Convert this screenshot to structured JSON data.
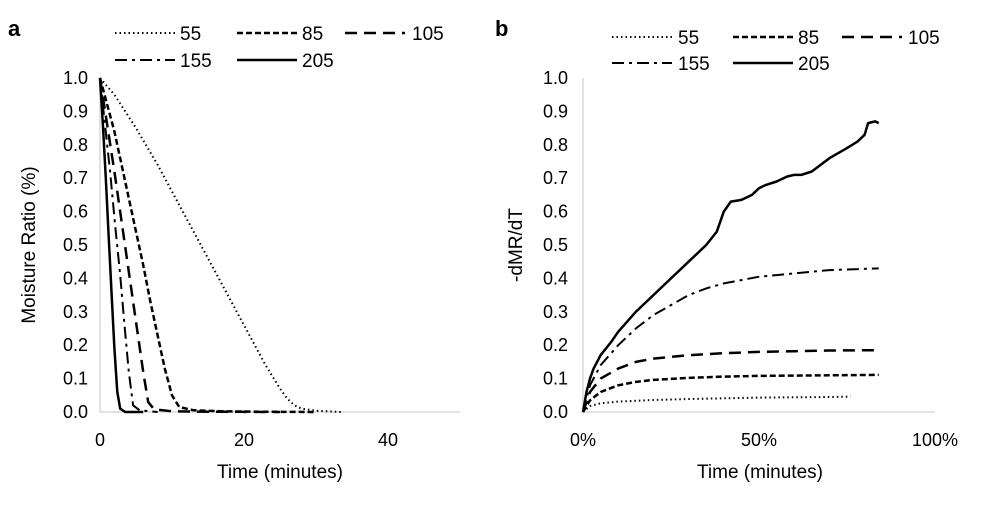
{
  "chart_data": [
    {
      "panel": "a",
      "type": "line",
      "title": "",
      "xlabel": "Time (minutes)",
      "ylabel": "Moisture Ratio (%)",
      "xlim": [
        0,
        50
      ],
      "ylim": [
        0,
        1
      ],
      "xticks": [
        "0",
        "20",
        "40"
      ],
      "xtick_values": [
        0,
        20,
        40
      ],
      "yticks": [
        "0.0",
        "0.1",
        "0.2",
        "0.3",
        "0.4",
        "0.5",
        "0.6",
        "0.7",
        "0.8",
        "0.9",
        "1.0"
      ],
      "grid": false,
      "legend_position": "top",
      "series": [
        {
          "name": "55",
          "style": "dotted",
          "x": [
            0,
            2,
            5,
            8,
            12,
            16,
            20,
            23,
            25,
            26,
            27,
            28,
            30,
            33.5
          ],
          "y": [
            1.0,
            0.95,
            0.85,
            0.74,
            0.58,
            0.42,
            0.26,
            0.14,
            0.07,
            0.04,
            0.02,
            0.01,
            0.004,
            0.0
          ]
        },
        {
          "name": "85",
          "style": "dashed",
          "x": [
            0,
            1,
            2,
            3,
            4,
            5,
            6,
            7,
            8,
            9,
            10,
            11,
            13,
            17,
            22,
            30
          ],
          "y": [
            1.0,
            0.92,
            0.84,
            0.74,
            0.64,
            0.54,
            0.44,
            0.33,
            0.23,
            0.13,
            0.05,
            0.015,
            0.005,
            0.002,
            0.001,
            0.0
          ]
        },
        {
          "name": "105",
          "style": "long-dashed",
          "x": [
            0,
            1,
            2,
            3,
            4,
            5,
            6,
            6.7,
            7.5,
            10,
            15,
            25
          ],
          "y": [
            1.0,
            0.86,
            0.72,
            0.57,
            0.42,
            0.27,
            0.12,
            0.03,
            0.008,
            0.002,
            0.001,
            0.0
          ]
        },
        {
          "name": "155",
          "style": "dash-dot",
          "x": [
            0,
            0.7,
            1.4,
            2.1,
            2.8,
            3.4,
            4,
            4.6,
            5.5,
            8
          ],
          "y": [
            1.0,
            0.86,
            0.72,
            0.56,
            0.41,
            0.26,
            0.12,
            0.02,
            0.005,
            0.0
          ]
        },
        {
          "name": "205",
          "style": "solid",
          "x": [
            0,
            0.4,
            0.8,
            1.2,
            1.6,
            2.0,
            2.4,
            2.8,
            3.5,
            6
          ],
          "y": [
            1.0,
            0.86,
            0.7,
            0.53,
            0.36,
            0.19,
            0.06,
            0.01,
            0.0,
            0.0
          ]
        }
      ]
    },
    {
      "panel": "b",
      "type": "line",
      "title": "",
      "xlabel": "Time (minutes)",
      "ylabel": "-dMR/dT",
      "xlim": [
        0,
        1
      ],
      "ylim": [
        0,
        1
      ],
      "xticks": [
        "0%",
        "50%",
        "100%"
      ],
      "xtick_values": [
        0,
        0.5,
        1
      ],
      "yticks": [
        "0.0",
        "0.1",
        "0.2",
        "0.3",
        "0.4",
        "0.5",
        "0.6",
        "0.7",
        "0.8",
        "0.9",
        "1.0"
      ],
      "grid": false,
      "legend_position": "top",
      "series": [
        {
          "name": "55",
          "style": "dotted",
          "x": [
            0,
            0.02,
            0.05,
            0.1,
            0.2,
            0.3,
            0.4,
            0.5,
            0.6,
            0.7,
            0.76
          ],
          "y": [
            0.0,
            0.018,
            0.026,
            0.031,
            0.036,
            0.039,
            0.041,
            0.043,
            0.044,
            0.045,
            0.046
          ]
        },
        {
          "name": "85",
          "style": "dashed",
          "x": [
            0,
            0.02,
            0.05,
            0.1,
            0.15,
            0.2,
            0.3,
            0.4,
            0.5,
            0.6,
            0.7,
            0.84
          ],
          "y": [
            0.0,
            0.035,
            0.06,
            0.08,
            0.09,
            0.096,
            0.102,
            0.106,
            0.108,
            0.109,
            0.11,
            0.111
          ]
        },
        {
          "name": "105",
          "style": "long-dashed",
          "x": [
            0,
            0.02,
            0.05,
            0.1,
            0.15,
            0.2,
            0.3,
            0.4,
            0.5,
            0.6,
            0.7,
            0.84
          ],
          "y": [
            0.0,
            0.06,
            0.1,
            0.13,
            0.15,
            0.16,
            0.17,
            0.176,
            0.18,
            0.182,
            0.184,
            0.185
          ]
        },
        {
          "name": "155",
          "style": "dash-dot",
          "x": [
            0,
            0.02,
            0.05,
            0.1,
            0.15,
            0.2,
            0.25,
            0.3,
            0.35,
            0.4,
            0.45,
            0.5,
            0.55,
            0.6,
            0.7,
            0.84
          ],
          "y": [
            0.0,
            0.08,
            0.14,
            0.2,
            0.25,
            0.29,
            0.32,
            0.35,
            0.37,
            0.385,
            0.395,
            0.405,
            0.41,
            0.415,
            0.425,
            0.43
          ]
        },
        {
          "name": "205",
          "style": "solid",
          "x": [
            0,
            0.01,
            0.02,
            0.03,
            0.05,
            0.08,
            0.1,
            0.15,
            0.2,
            0.25,
            0.3,
            0.35,
            0.38,
            0.4,
            0.42,
            0.45,
            0.48,
            0.5,
            0.52,
            0.55,
            0.58,
            0.6,
            0.62,
            0.65,
            0.7,
            0.75,
            0.78,
            0.8,
            0.81,
            0.83,
            0.84
          ],
          "y": [
            0.0,
            0.06,
            0.1,
            0.13,
            0.17,
            0.21,
            0.24,
            0.3,
            0.35,
            0.4,
            0.45,
            0.5,
            0.54,
            0.6,
            0.63,
            0.635,
            0.65,
            0.67,
            0.68,
            0.69,
            0.705,
            0.71,
            0.71,
            0.72,
            0.76,
            0.79,
            0.81,
            0.83,
            0.865,
            0.87,
            0.865
          ]
        }
      ]
    }
  ]
}
